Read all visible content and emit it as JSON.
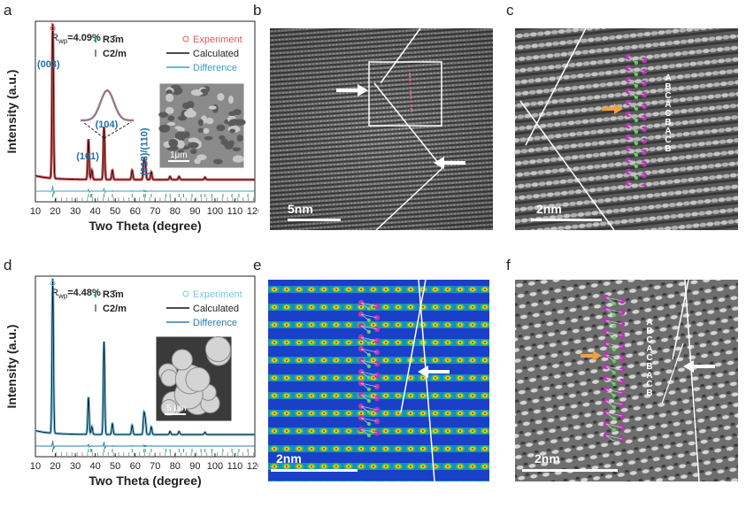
{
  "panels": {
    "a": "a",
    "b": "b",
    "c": "c",
    "d": "d",
    "e": "e",
    "f": "f"
  },
  "chart_data": [
    {
      "type": "line",
      "panel": "a",
      "xlabel": "Two Theta (degree)",
      "ylabel": "Intensity (a.u.)",
      "xlim": [
        10,
        120
      ],
      "xticks": [
        10,
        20,
        30,
        40,
        50,
        60,
        70,
        80,
        90,
        100,
        110,
        120
      ],
      "rwp_main": "R",
      "rwp_sub": "wp",
      "rwp_value": "=4.09%",
      "phase1": "R3̄m",
      "phase2": "C2/m",
      "legend": {
        "experiment": "Experiment",
        "calculated": "Calculated",
        "difference": "Difference"
      },
      "colors": {
        "experiment": "#e05a5a",
        "calculated": "#111111",
        "difference": "#3aa0c8",
        "peak_label": "#1f6fa8",
        "tick1": "#2a9d8f",
        "tick2": "#888888"
      },
      "peak_labels": [
        "(003)",
        "(101)",
        "(104)",
        "(018)/(110)"
      ],
      "inset_scale": "1μm",
      "peaks": [
        {
          "x": 18.7,
          "y": 100
        },
        {
          "x": 36.6,
          "y": 26
        },
        {
          "x": 38.3,
          "y": 6
        },
        {
          "x": 44.4,
          "y": 34
        },
        {
          "x": 48.6,
          "y": 6
        },
        {
          "x": 58.5,
          "y": 6
        },
        {
          "x": 64.4,
          "y": 12
        },
        {
          "x": 65.1,
          "y": 9
        },
        {
          "x": 68.1,
          "y": 5
        },
        {
          "x": 77.5,
          "y": 2
        },
        {
          "x": 82.0,
          "y": 2
        },
        {
          "x": 95.0,
          "y": 1.5
        }
      ],
      "baseline": 4
    },
    {
      "type": "line",
      "panel": "d",
      "xlabel": "Two Theta (degree)",
      "ylabel": "Intensity (a.u.)",
      "xlim": [
        10,
        120
      ],
      "xticks": [
        10,
        20,
        30,
        40,
        50,
        60,
        70,
        80,
        90,
        100,
        110,
        120
      ],
      "rwp_main": "R",
      "rwp_sub": "wp",
      "rwp_value": "=4.48%",
      "phase1": "R3̄m",
      "phase2": "C2/m",
      "legend": {
        "experiment": "Experiment",
        "calculated": "Calculated",
        "difference": "Difference"
      },
      "colors": {
        "experiment": "#7cc6e8",
        "calculated": "#111111",
        "difference": "#2c7fa8",
        "tick1": "#2a9d8f",
        "tick2": "#888888"
      },
      "inset_scale": "5 μm",
      "peaks": [
        {
          "x": 18.7,
          "y": 100
        },
        {
          "x": 36.6,
          "y": 24
        },
        {
          "x": 38.3,
          "y": 5
        },
        {
          "x": 44.4,
          "y": 60
        },
        {
          "x": 48.6,
          "y": 7
        },
        {
          "x": 58.5,
          "y": 6
        },
        {
          "x": 64.4,
          "y": 13
        },
        {
          "x": 65.1,
          "y": 9
        },
        {
          "x": 68.1,
          "y": 5
        },
        {
          "x": 77.5,
          "y": 2
        },
        {
          "x": 82.0,
          "y": 2
        },
        {
          "x": 95.0,
          "y": 1.5
        }
      ],
      "baseline": 4
    }
  ],
  "micrographs": {
    "b": {
      "scale": "5nm"
    },
    "c": {
      "scale": "2nm",
      "stacking": [
        "A",
        "B",
        "C",
        "A",
        "C",
        "B",
        "A",
        "C",
        "B"
      ]
    },
    "e": {
      "scale": "2nm"
    },
    "f": {
      "scale": "2nm",
      "stacking": [
        "A",
        "B",
        "C",
        "A",
        "C",
        "B",
        "A",
        "C",
        "B"
      ]
    }
  }
}
